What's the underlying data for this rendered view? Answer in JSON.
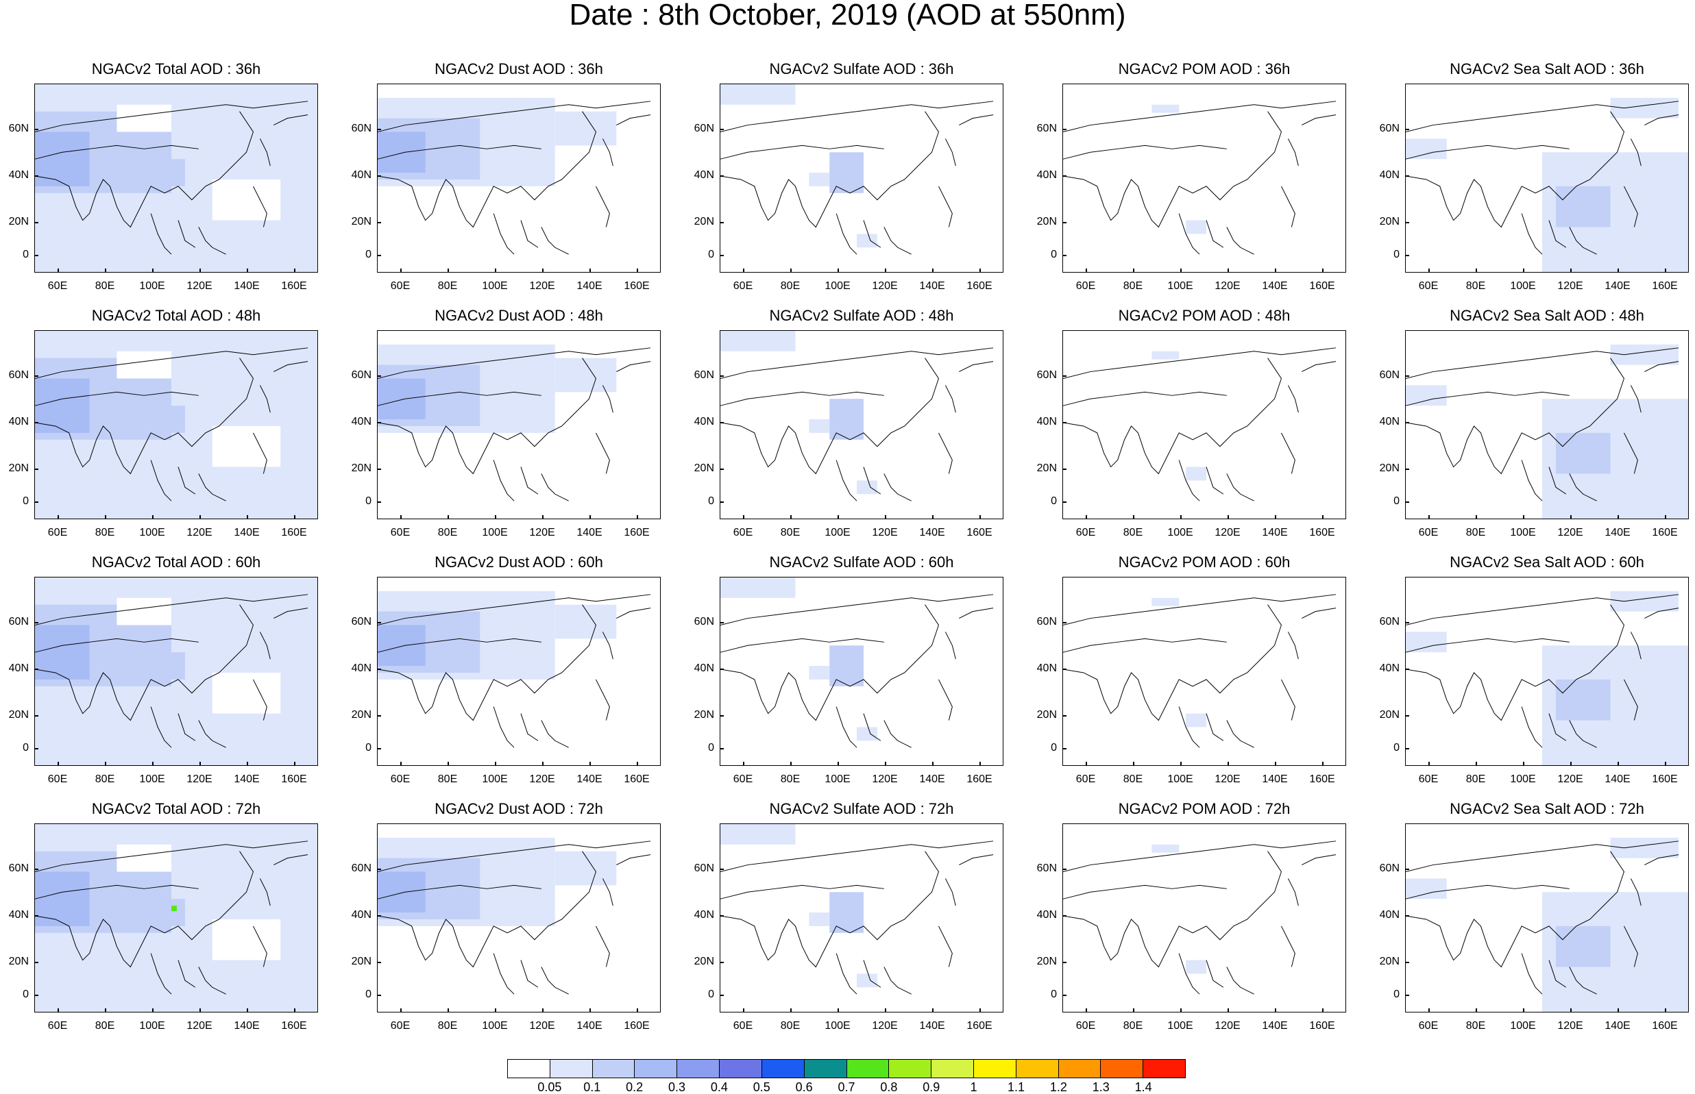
{
  "title": "Date : 8th October, 2019 (AOD at 550nm)",
  "panels": [
    [
      "NGACv2 Total AOD : 36h",
      "NGACv2 Dust AOD : 36h",
      "NGACv2 Sulfate AOD : 36h",
      "NGACv2 POM AOD : 36h",
      "NGACv2 Sea Salt AOD : 36h"
    ],
    [
      "NGACv2 Total AOD : 48h",
      "NGACv2 Dust AOD : 48h",
      "NGACv2 Sulfate AOD : 48h",
      "NGACv2 POM AOD : 48h",
      "NGACv2 Sea Salt AOD : 48h"
    ],
    [
      "NGACv2 Total AOD : 60h",
      "NGACv2 Dust AOD : 60h",
      "NGACv2 Sulfate AOD : 60h",
      "NGACv2 POM AOD : 60h",
      "NGACv2 Sea Salt AOD : 60h"
    ],
    [
      "NGACv2 Total AOD : 72h",
      "NGACv2 Dust AOD : 72h",
      "NGACv2 Sulfate AOD : 72h",
      "NGACv2 POM AOD : 72h",
      "NGACv2 Sea Salt  AOD : 72h"
    ]
  ],
  "y_ticks": [
    "60N",
    "40N",
    "20N",
    "0"
  ],
  "x_ticks": [
    "60E",
    "80E",
    "100E",
    "120E",
    "140E",
    "160E"
  ],
  "colorbar": {
    "labels": [
      "0.05",
      "0.1",
      "0.2",
      "0.3",
      "0.4",
      "0.5",
      "0.6",
      "0.7",
      "0.8",
      "0.9",
      "1",
      "1.1",
      "1.2",
      "1.3",
      "1.4"
    ],
    "colors": [
      "#ffffff",
      "#dde6fb",
      "#c2d0f7",
      "#a7bbf5",
      "#8b9df0",
      "#6c75e6",
      "#1d5cf2",
      "#0b8e8e",
      "#56e51a",
      "#a2ee1c",
      "#d6f443",
      "#fff200",
      "#ffc200",
      "#ff9900",
      "#ff6600",
      "#ff1a00"
    ]
  }
}
